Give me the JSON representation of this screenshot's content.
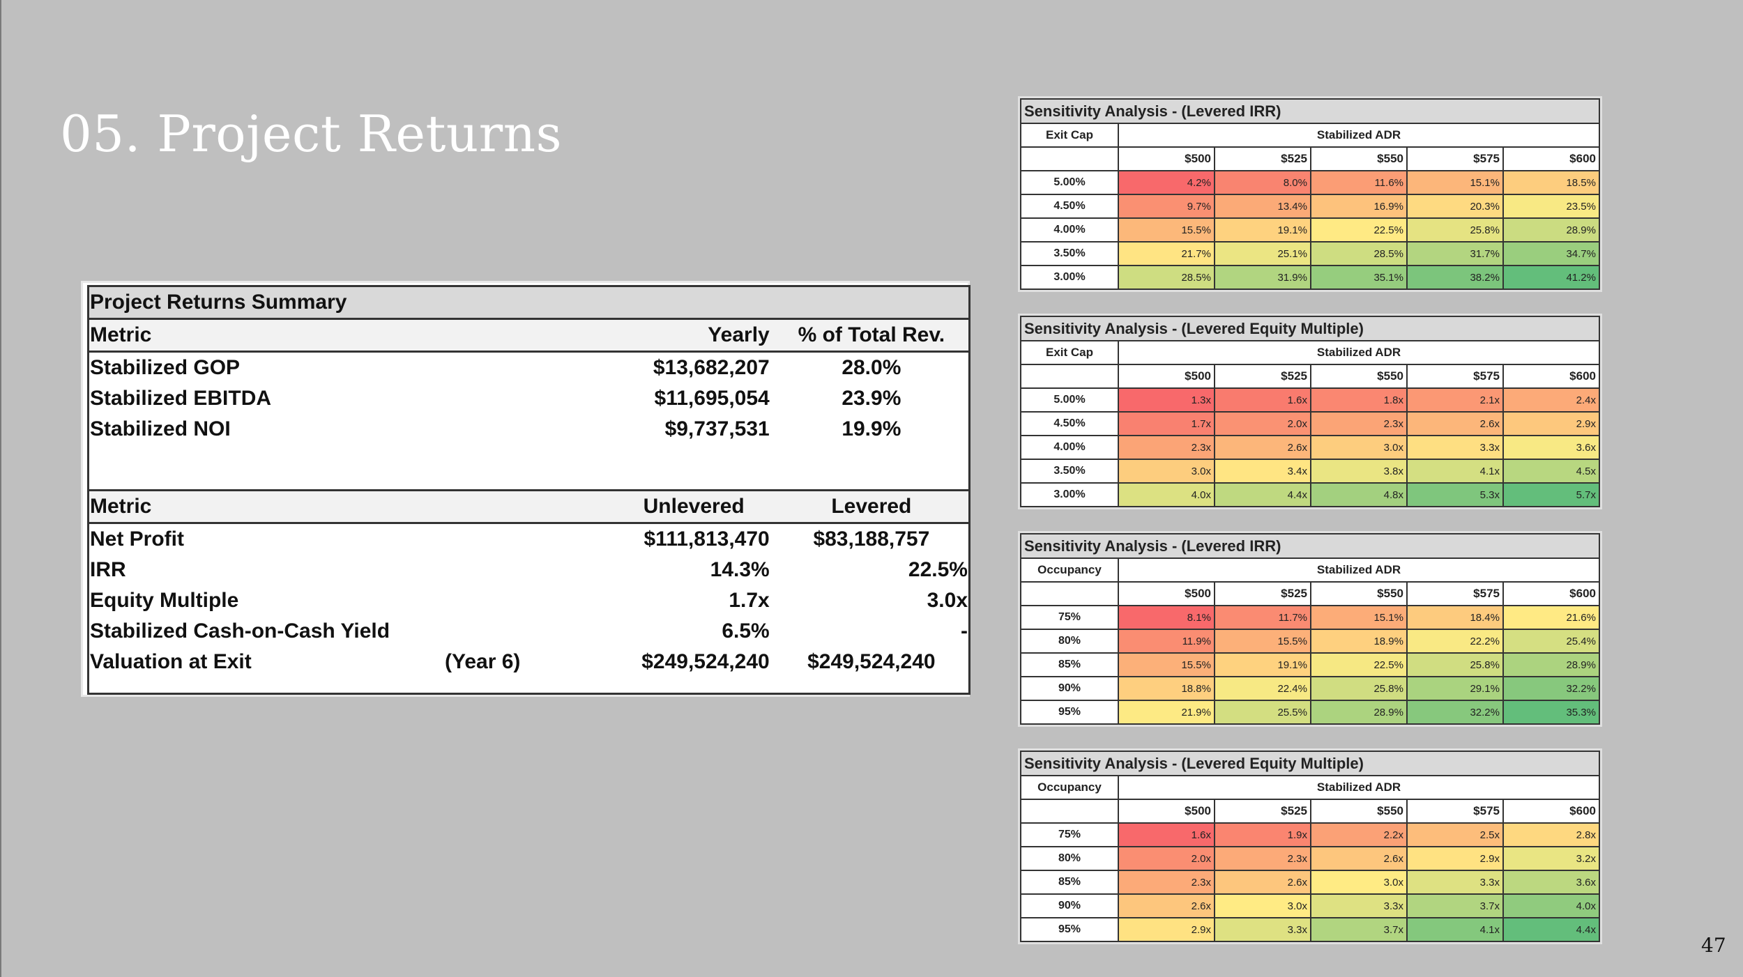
{
  "page": {
    "title": "05. Project Returns",
    "number": "47"
  },
  "summary": {
    "title": "Project Returns Summary",
    "header1": {
      "metric": "Metric",
      "col1": "Yearly",
      "col2": "% of Total Rev."
    },
    "rows1": [
      {
        "label": "Stabilized GOP",
        "v1": "$13,682,207",
        "v2": "28.0%"
      },
      {
        "label": "Stabilized EBITDA",
        "v1": "$11,695,054",
        "v2": "23.9%"
      },
      {
        "label": "Stabilized NOI",
        "v1": "$9,737,531",
        "v2": "19.9%"
      }
    ],
    "header2": {
      "metric": "Metric",
      "col1": "Unlevered",
      "col2": "Levered"
    },
    "rows2": [
      {
        "label": "Net Profit",
        "note": "",
        "v1": "$111,813,470",
        "v2": "$83,188,757"
      },
      {
        "label": "IRR",
        "note": "",
        "v1": "14.3%",
        "v2": "22.5%"
      },
      {
        "label": "Equity Multiple",
        "note": "",
        "v1": "1.7x",
        "v2": "3.0x"
      },
      {
        "label": "Stabilized Cash-on-Cash Yield",
        "note": "",
        "v1": "6.5%",
        "v2": "-"
      },
      {
        "label": "Valuation at Exit",
        "note": "(Year 6)",
        "v1": "$249,524,240",
        "v2": "$249,524,240"
      }
    ]
  },
  "sensitivity": [
    {
      "title": "Sensitivity Analysis - (Levered IRR)",
      "row_header": "Exit Cap",
      "col_group": "Stabilized ADR",
      "cols": [
        "$500",
        "$525",
        "$550",
        "$575",
        "$600"
      ],
      "rows": [
        {
          "label": "5.00%",
          "values": [
            "4.2%",
            "8.0%",
            "11.6%",
            "15.1%",
            "18.5%"
          ]
        },
        {
          "label": "4.50%",
          "values": [
            "9.7%",
            "13.4%",
            "16.9%",
            "20.3%",
            "23.5%"
          ]
        },
        {
          "label": "4.00%",
          "values": [
            "15.5%",
            "19.1%",
            "22.5%",
            "25.8%",
            "28.9%"
          ]
        },
        {
          "label": "3.50%",
          "values": [
            "21.7%",
            "25.1%",
            "28.5%",
            "31.7%",
            "34.7%"
          ]
        },
        {
          "label": "3.00%",
          "values": [
            "28.5%",
            "31.9%",
            "35.1%",
            "38.2%",
            "41.2%"
          ]
        }
      ]
    },
    {
      "title": "Sensitivity Analysis - (Levered Equity Multiple)",
      "row_header": "Exit Cap",
      "col_group": "Stabilized ADR",
      "cols": [
        "$500",
        "$525",
        "$550",
        "$575",
        "$600"
      ],
      "rows": [
        {
          "label": "5.00%",
          "values": [
            "1.3x",
            "1.6x",
            "1.8x",
            "2.1x",
            "2.4x"
          ]
        },
        {
          "label": "4.50%",
          "values": [
            "1.7x",
            "2.0x",
            "2.3x",
            "2.6x",
            "2.9x"
          ]
        },
        {
          "label": "4.00%",
          "values": [
            "2.3x",
            "2.6x",
            "3.0x",
            "3.3x",
            "3.6x"
          ]
        },
        {
          "label": "3.50%",
          "values": [
            "3.0x",
            "3.4x",
            "3.8x",
            "4.1x",
            "4.5x"
          ]
        },
        {
          "label": "3.00%",
          "values": [
            "4.0x",
            "4.4x",
            "4.8x",
            "5.3x",
            "5.7x"
          ]
        }
      ]
    },
    {
      "title": "Sensitivity Analysis - (Levered IRR)",
      "row_header": "Occupancy",
      "col_group": "Stabilized ADR",
      "cols": [
        "$500",
        "$525",
        "$550",
        "$575",
        "$600"
      ],
      "rows": [
        {
          "label": "75%",
          "values": [
            "8.1%",
            "11.7%",
            "15.1%",
            "18.4%",
            "21.6%"
          ]
        },
        {
          "label": "80%",
          "values": [
            "11.9%",
            "15.5%",
            "18.9%",
            "22.2%",
            "25.4%"
          ]
        },
        {
          "label": "85%",
          "values": [
            "15.5%",
            "19.1%",
            "22.5%",
            "25.8%",
            "28.9%"
          ]
        },
        {
          "label": "90%",
          "values": [
            "18.8%",
            "22.4%",
            "25.8%",
            "29.1%",
            "32.2%"
          ]
        },
        {
          "label": "95%",
          "values": [
            "21.9%",
            "25.5%",
            "28.9%",
            "32.2%",
            "35.3%"
          ]
        }
      ]
    },
    {
      "title": "Sensitivity Analysis - (Levered Equity Multiple)",
      "row_header": "Occupancy",
      "col_group": "Stabilized ADR",
      "cols": [
        "$500",
        "$525",
        "$550",
        "$575",
        "$600"
      ],
      "rows": [
        {
          "label": "75%",
          "values": [
            "1.6x",
            "1.9x",
            "2.2x",
            "2.5x",
            "2.8x"
          ]
        },
        {
          "label": "80%",
          "values": [
            "2.0x",
            "2.3x",
            "2.6x",
            "2.9x",
            "3.2x"
          ]
        },
        {
          "label": "85%",
          "values": [
            "2.3x",
            "2.6x",
            "3.0x",
            "3.3x",
            "3.6x"
          ]
        },
        {
          "label": "90%",
          "values": [
            "2.6x",
            "3.0x",
            "3.3x",
            "3.7x",
            "4.0x"
          ]
        },
        {
          "label": "95%",
          "values": [
            "2.9x",
            "3.3x",
            "3.7x",
            "4.1x",
            "4.4x"
          ]
        }
      ]
    }
  ],
  "heatmap_colors": {
    "low": "#f8696b",
    "mid": "#ffeb84",
    "high": "#63be7b"
  }
}
